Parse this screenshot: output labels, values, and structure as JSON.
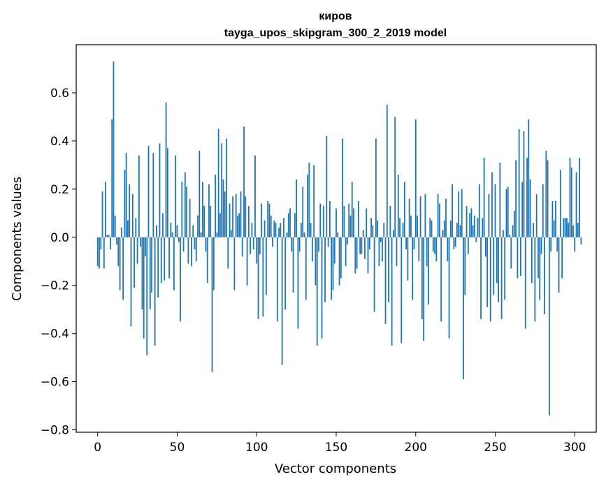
{
  "chart_data": {
    "type": "bar",
    "title": "киров",
    "subtitle": "tayga_upos_skipgram_300_2_2019 model",
    "xlabel": "Vector components",
    "ylabel": "Components values",
    "xlim": [
      -13.5,
      313.5
    ],
    "ylim": [
      -0.81,
      0.8
    ],
    "xticks": [
      0,
      50,
      100,
      150,
      200,
      250,
      300
    ],
    "xtick_labels": [
      "0",
      "50",
      "100",
      "150",
      "200",
      "250",
      "300"
    ],
    "yticks": [
      -0.8,
      -0.6,
      -0.4,
      -0.2,
      0.0,
      0.2,
      0.4,
      0.6
    ],
    "ytick_labels": [
      "−0.8",
      "−0.6",
      "−0.4",
      "−0.2",
      "0.0",
      "0.2",
      "0.4",
      "0.6"
    ],
    "bar_color": "#1f77b4",
    "grid": false,
    "x_start": 0,
    "values": [
      -0.12,
      -0.13,
      -0.05,
      0.19,
      -0.13,
      0.23,
      0.01,
      0.01,
      -0.05,
      0.49,
      0.73,
      0.09,
      -0.03,
      -0.12,
      -0.22,
      0.04,
      -0.26,
      0.28,
      0.35,
      0.07,
      0.22,
      -0.37,
      0.18,
      -0.21,
      0.08,
      -0.11,
      0.34,
      -0.04,
      -0.3,
      -0.42,
      -0.08,
      -0.49,
      0.38,
      -0.3,
      -0.23,
      0.35,
      -0.45,
      0.05,
      -0.25,
      0.39,
      -0.19,
      0.1,
      -0.18,
      0.56,
      0.37,
      -0.17,
      0.06,
      0.02,
      -0.22,
      0.34,
      0.05,
      -0.02,
      -0.35,
      0.23,
      -0.06,
      0.27,
      0.21,
      -0.11,
      0.16,
      -0.12,
      0.05,
      -0.05,
      -0.1,
      0.09,
      0.36,
      0.02,
      0.23,
      0.13,
      -0.06,
      -0.19,
      0.22,
      0.13,
      -0.56,
      -0.22,
      0.26,
      0.02,
      0.45,
      0.1,
      0.39,
      0.24,
      0.19,
      0.41,
      -0.13,
      0.14,
      0.03,
      0.17,
      -0.22,
      0.18,
      0.09,
      0.1,
      0.19,
      -0.08,
      0.46,
      0.17,
      -0.2,
      0.13,
      -0.07,
      0.06,
      -0.05,
      0.34,
      -0.11,
      -0.34,
      -0.07,
      0.14,
      -0.33,
      0.07,
      -0.24,
      0.15,
      0.14,
      0.09,
      -0.04,
      0.07,
      0.06,
      -0.35,
      0.04,
      0.06,
      -0.53,
      0.08,
      -0.3,
      0.02,
      0.1,
      0.12,
      -0.06,
      -0.23,
      0.1,
      0.24,
      -0.38,
      -0.06,
      0.06,
      0.21,
      0.02,
      -0.26,
      0.26,
      0.31,
      0.06,
      -0.1,
      0.3,
      -0.2,
      -0.45,
      -0.06,
      0.14,
      -0.42,
      0.13,
      -0.27,
      0.42,
      -0.04,
      0.15,
      -0.26,
      -0.22,
      -0.11,
      0.12,
      0.02,
      -0.2,
      -0.17,
      0.41,
      0.13,
      -0.12,
      -0.03,
      0.14,
      0.09,
      0.23,
      0.12,
      -0.15,
      -0.13,
      0.15,
      -0.07,
      -0.07,
      0.03,
      -0.09,
      0.12,
      -0.15,
      -0.05,
      0.08,
      0.05,
      -0.31,
      0.41,
      0.07,
      -0.12,
      -0.02,
      -0.1,
      0.06,
      -0.36,
      0.55,
      -0.27,
      0.13,
      -0.45,
      0.03,
      0.5,
      -0.12,
      0.26,
      0.08,
      -0.44,
      0.06,
      0.23,
      -0.05,
      -0.18,
      0.16,
      0.09,
      -0.26,
      -0.05,
      0.49,
      0.09,
      -0.1,
      0.17,
      -0.34,
      -0.43,
      0.18,
      -0.12,
      -0.28,
      0.08,
      0.07,
      -0.06,
      -0.07,
      -0.1,
      0.18,
      0.14,
      -0.35,
      0.03,
      0.07,
      0.16,
      -0.1,
      -0.42,
      0.07,
      0.22,
      -0.05,
      -0.04,
      0.06,
      0.19,
      0.05,
      0.2,
      -0.59,
      -0.24,
      0.13,
      -0.07,
      0.1,
      0.12,
      0.05,
      0.09,
      -0.02,
      0.08,
      0.22,
      -0.34,
      0.08,
      0.33,
      -0.08,
      -0.29,
      0.18,
      -0.35,
      0.27,
      -0.24,
      0.22,
      -0.19,
      -0.27,
      0.31,
      -0.34,
      0.03,
      -0.26,
      0.2,
      0.21,
      0.01,
      -0.13,
      0.05,
      0.11,
      0.32,
      -0.17,
      0.45,
      -0.16,
      0.23,
      0.44,
      -0.38,
      0.33,
      0.49,
      0.24,
      -0.19,
      0.06,
      -0.35,
      0.18,
      -0.17,
      -0.26,
      -0.07,
      0.22,
      -0.32,
      0.36,
      0.32,
      -0.74,
      -0.06,
      0.15,
      0.07,
      0.15,
      -0.06,
      -0.23,
      0.28,
      -0.17,
      0.08,
      0.08,
      0.08,
      0.06,
      0.33,
      0.29,
      0.05,
      -0.06,
      0.27,
      0.06,
      0.33,
      -0.03
    ]
  }
}
